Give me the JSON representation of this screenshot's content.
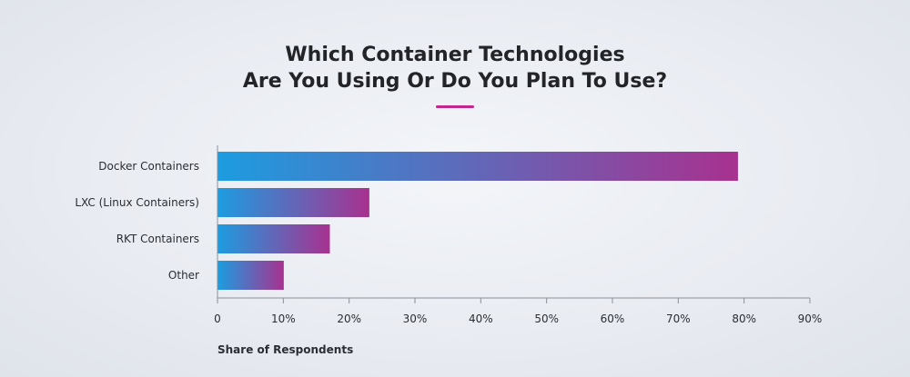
{
  "header": {
    "title_line1": "Which Container Technologies",
    "title_line2": "Are You Using Or Do You Plan To Use?"
  },
  "colors": {
    "accent": "#c2268f",
    "bar_start": "#1d9ce0",
    "bar_end": "#a8318f",
    "axis": "#8a8f98"
  },
  "chart_data": {
    "type": "bar",
    "orientation": "horizontal",
    "title": "Which Container Technologies Are You Using Or Do You Plan To Use?",
    "categories": [
      "Docker Containers",
      "LXC (Linux Containers)",
      "RKT Containers",
      "Other"
    ],
    "values": [
      79,
      23,
      17,
      10
    ],
    "unit": "%",
    "xlabel": "Share of Respondents",
    "ylabel": "",
    "xlim": [
      0,
      90
    ],
    "xticks": [
      0,
      10,
      20,
      30,
      40,
      50,
      60,
      70,
      80,
      90
    ],
    "xtick_labels": [
      "0",
      "10%",
      "20%",
      "30%",
      "40%",
      "50%",
      "60%",
      "70%",
      "80%",
      "90%"
    ],
    "grid": false,
    "legend": "none"
  }
}
